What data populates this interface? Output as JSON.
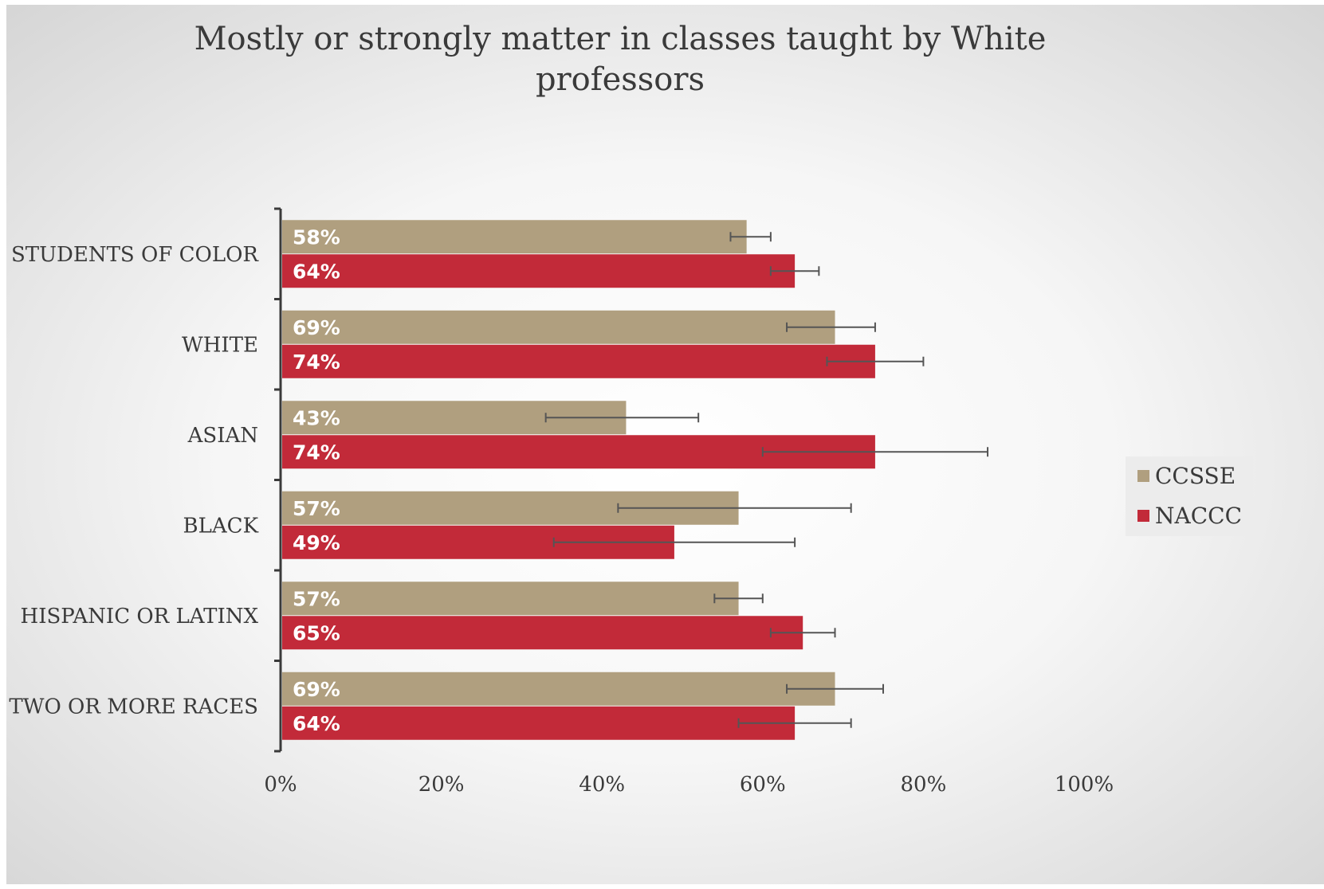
{
  "chart_data": {
    "type": "bar",
    "orientation": "horizontal",
    "title": "Mostly or strongly matter in classes taught by White professors",
    "categories": [
      "STUDENTS OF COLOR",
      "WHITE",
      "ASIAN",
      "BLACK",
      "HISPANIC OR LATINX",
      "TWO OR MORE RACES"
    ],
    "series": [
      {
        "name": "CCSSE",
        "color": "#b09f7f",
        "values": [
          58,
          69,
          43,
          57,
          57,
          69
        ],
        "labels": [
          "58%",
          "69%",
          "43%",
          "57%",
          "57%",
          "69%"
        ],
        "error_low": [
          56,
          63,
          33,
          42,
          54,
          63
        ],
        "error_high": [
          61,
          74,
          52,
          71,
          60,
          75
        ]
      },
      {
        "name": "NACCC",
        "color": "#c22a39",
        "values": [
          64,
          74,
          74,
          49,
          65,
          64
        ],
        "labels": [
          "64%",
          "74%",
          "74%",
          "49%",
          "65%",
          "64%"
        ],
        "error_low": [
          61,
          68,
          60,
          34,
          61,
          57
        ],
        "error_high": [
          67,
          80,
          88,
          64,
          69,
          71
        ]
      }
    ],
    "xlim": [
      0,
      100
    ],
    "x_ticks": [
      "0%",
      "20%",
      "40%",
      "60%",
      "80%",
      "100%"
    ],
    "grid": false,
    "legend_position": "right",
    "background": "radial-gradient white center to grey edges"
  }
}
